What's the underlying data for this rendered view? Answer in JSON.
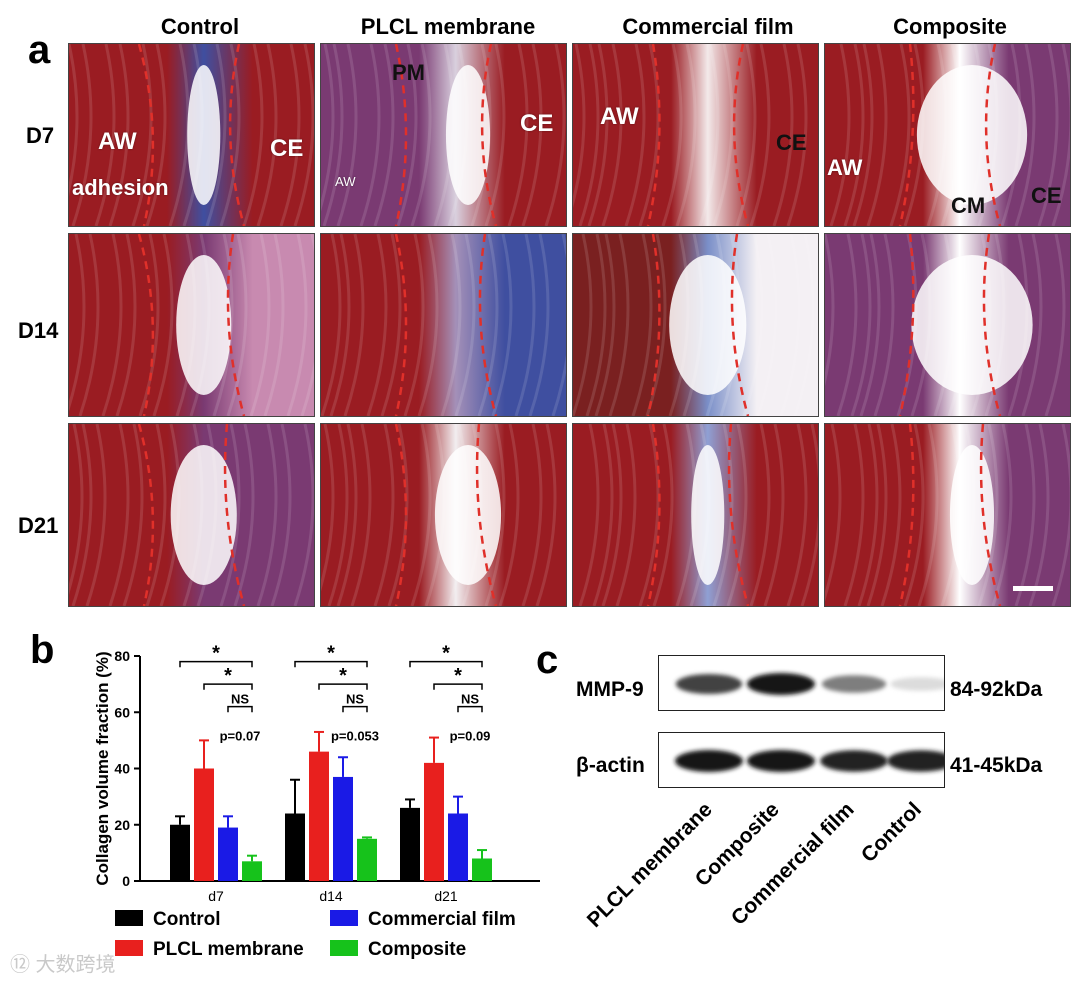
{
  "panels": {
    "a": {
      "letter": "a",
      "columns": [
        "Control",
        "PLCL membrane",
        "Commercial film",
        "Composite"
      ],
      "rows": [
        "D7",
        "D14",
        "D21"
      ],
      "annotations": {
        "c0r0_aw": "AW",
        "c0r0_ce": "CE",
        "c0r0_adhesion": "adhesion",
        "c1r0_pm": "PM",
        "c1r0_ce": "CE",
        "c1r0_aw": "AW",
        "c2r0_aw": "AW",
        "c2r0_ce": "CE",
        "c3r0_aw": "AW",
        "c3r0_cm": "CM",
        "c3r0_ce": "CE"
      },
      "colors": {
        "tissue_red": "#9a1c22",
        "collagen_blue": "#3f4fa0",
        "purple": "#7a3a72",
        "dashed_outline": "#e0302a"
      }
    },
    "b": {
      "letter": "b"
    },
    "c": {
      "letter": "c",
      "bands": [
        {
          "name": "MMP-9",
          "size": "84-92kDa",
          "intensity": [
            0.8,
            1.0,
            0.55,
            0.15
          ]
        },
        {
          "name": "β-actin",
          "size": "41-45kDa",
          "intensity": [
            1.0,
            1.0,
            0.95,
            0.95
          ]
        }
      ],
      "lanes": [
        "PLCL membrane",
        "Composite",
        "Commercial film",
        "Control"
      ]
    }
  },
  "chart_data": {
    "type": "bar",
    "ylabel": "Collagen volume fraction  (%)",
    "xlabel": "",
    "ylim": [
      0,
      80
    ],
    "yticks": [
      0,
      20,
      40,
      60,
      80
    ],
    "categories": [
      "d7",
      "d14",
      "d21"
    ],
    "series": [
      {
        "name": "Control",
        "color": "#000000",
        "values": [
          20,
          24,
          26
        ],
        "errors": [
          3,
          12,
          3
        ]
      },
      {
        "name": "PLCL membrane",
        "color": "#e8201e",
        "values": [
          40,
          46,
          42
        ],
        "errors": [
          10,
          7,
          9
        ]
      },
      {
        "name": "Commercial film",
        "color": "#1a1ae6",
        "values": [
          19,
          37,
          24
        ],
        "errors": [
          4,
          7,
          6
        ]
      },
      {
        "name": "Composite",
        "color": "#16c21b",
        "values": [
          7,
          15,
          8
        ],
        "errors": [
          2,
          0.5,
          3
        ]
      }
    ],
    "significance": {
      "star": "*",
      "ns": "NS",
      "pvalues": [
        "p=0.07",
        "p=0.053",
        "p=0.09"
      ]
    },
    "legend_placement": "bottom"
  },
  "watermark": "⑫ 大数跨境"
}
